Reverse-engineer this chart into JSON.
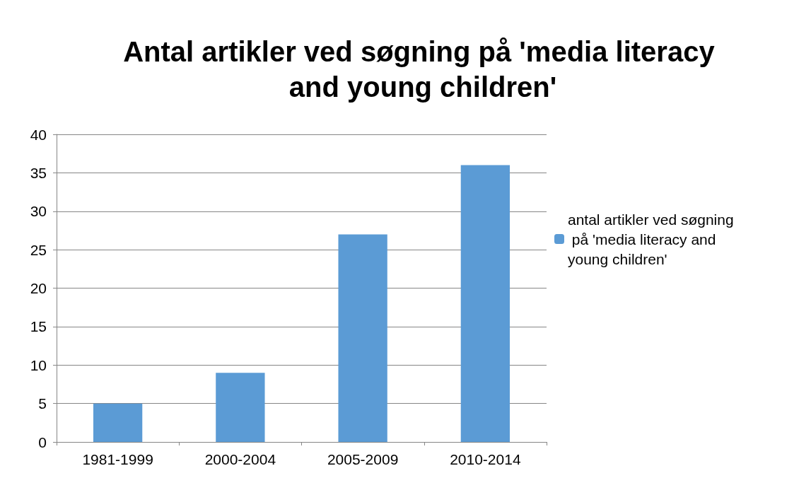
{
  "chart_data": {
    "type": "bar",
    "title": "Antal artikler ved søgning på 'media literacy and young children'",
    "categories": [
      "1981-1999",
      "2000-2004",
      "2005-2009",
      "2010-2014"
    ],
    "series": [
      {
        "name": "antal artikler ved søgning på 'media literacy and young children'",
        "color": "#5b9bd5",
        "values": [
          5,
          9,
          27,
          36
        ]
      }
    ],
    "ylim": [
      0,
      40
    ],
    "yticks": [
      0,
      5,
      10,
      15,
      20,
      25,
      30,
      35,
      40
    ],
    "grid": "y",
    "legend": "right"
  }
}
